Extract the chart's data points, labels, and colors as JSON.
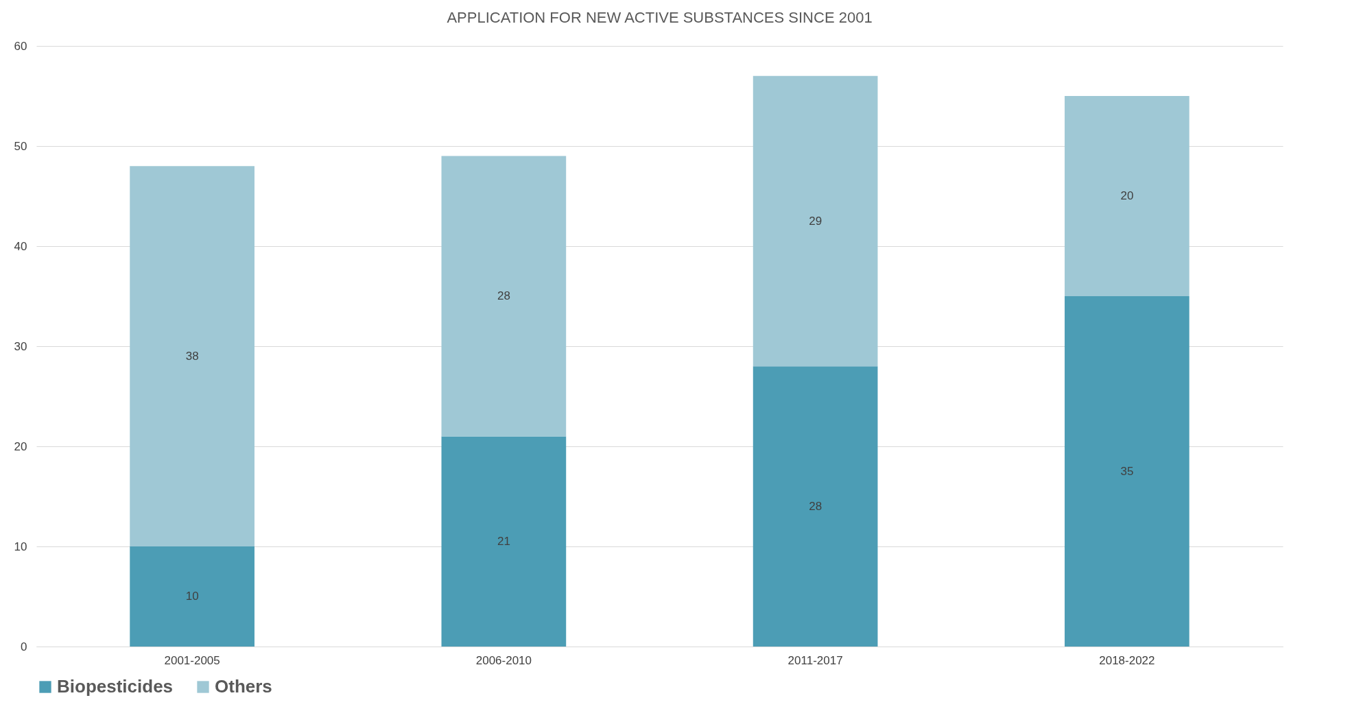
{
  "chart_data": {
    "type": "bar",
    "title": "APPLICATION FOR NEW ACTIVE SUBSTANCES SINCE 2001",
    "categories": [
      "2001-2005",
      "2006-2010",
      "2011-2017",
      "2018-2022"
    ],
    "series": [
      {
        "name": "Biopesticides",
        "color": "#4c9db5",
        "values": [
          10,
          21,
          28,
          35
        ]
      },
      {
        "name": "Others",
        "color": "#9fc8d5",
        "values": [
          38,
          28,
          29,
          20
        ]
      }
    ],
    "stacked": true,
    "ylim": [
      0,
      60
    ],
    "yticks": [
      0,
      10,
      20,
      30,
      40,
      50,
      60
    ],
    "grid": "y",
    "legend": "bottom",
    "data_labels": true
  }
}
